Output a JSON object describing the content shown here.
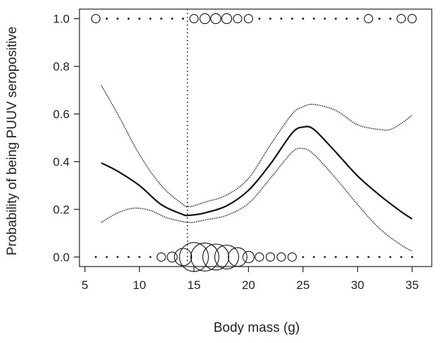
{
  "chart_data": {
    "type": "line",
    "title": "",
    "xlabel": "Body mass (g)",
    "ylabel": "Probability of being PUUV seropositive",
    "xlim": [
      4.5,
      36.8
    ],
    "ylim": [
      -0.04,
      1.04
    ],
    "xticks": [
      5,
      10,
      15,
      20,
      25,
      30,
      35
    ],
    "yticks": [
      0.0,
      0.2,
      0.4,
      0.6,
      0.8,
      1.0
    ],
    "xtick_labels": [
      "5",
      "10",
      "15",
      "20",
      "25",
      "30",
      "35"
    ],
    "ytick_labels": [
      "0.0",
      "0.2",
      "0.4",
      "0.6",
      "0.8",
      "1.0"
    ],
    "grid": false,
    "legend": "none",
    "reference_line_x": 14.4,
    "series": [
      {
        "role": "fit",
        "x": [
          6.5,
          8,
          10,
          12,
          14,
          14.5,
          15,
          16,
          18,
          20,
          22,
          24,
          25,
          26,
          28,
          30,
          32,
          34,
          35
        ],
        "y": [
          0.395,
          0.36,
          0.3,
          0.22,
          0.178,
          0.175,
          0.177,
          0.185,
          0.215,
          0.28,
          0.39,
          0.52,
          0.545,
          0.535,
          0.44,
          0.34,
          0.26,
          0.19,
          0.16
        ]
      },
      {
        "role": "upper-ci",
        "x": [
          6.5,
          8,
          10,
          12,
          14,
          14.5,
          15,
          16,
          18,
          20,
          22,
          24,
          25,
          26,
          28,
          30,
          32,
          33,
          34,
          35
        ],
        "y": [
          0.72,
          0.6,
          0.43,
          0.3,
          0.22,
          0.212,
          0.215,
          0.23,
          0.26,
          0.33,
          0.47,
          0.6,
          0.63,
          0.64,
          0.615,
          0.555,
          0.535,
          0.535,
          0.56,
          0.595
        ]
      },
      {
        "role": "lower-ci",
        "x": [
          6.5,
          8,
          9.5,
          11,
          12.5,
          14,
          14.5,
          15,
          16,
          18,
          20,
          22,
          24,
          25,
          26,
          28,
          30,
          32,
          34,
          35
        ],
        "y": [
          0.145,
          0.185,
          0.205,
          0.195,
          0.165,
          0.148,
          0.145,
          0.146,
          0.155,
          0.175,
          0.225,
          0.33,
          0.44,
          0.455,
          0.43,
          0.33,
          0.22,
          0.12,
          0.05,
          0.025
        ]
      }
    ],
    "observations": [
      {
        "y": 1,
        "x": [
          6,
          7,
          8,
          9,
          10,
          11,
          12,
          13,
          14,
          15,
          16,
          17,
          18,
          19,
          20,
          21,
          22,
          23,
          24,
          25,
          26,
          27,
          28,
          29,
          30,
          31,
          32,
          33,
          34,
          35
        ],
        "n": [
          2,
          1,
          1,
          1,
          1,
          1,
          1,
          1,
          1,
          2,
          3,
          3,
          3,
          2,
          2,
          1,
          1,
          1,
          1,
          1,
          1,
          1,
          1,
          1,
          1,
          2,
          1,
          1,
          2,
          2
        ]
      },
      {
        "y": 0,
        "x": [
          6,
          7,
          8,
          9,
          10,
          11,
          12,
          13,
          14,
          15,
          16,
          17,
          18,
          19,
          20,
          21,
          22,
          23,
          24,
          25,
          26,
          27,
          28,
          29,
          30,
          31,
          32,
          33,
          34,
          35
        ],
        "n": [
          1,
          1,
          1,
          1,
          1,
          1,
          2,
          3,
          10,
          30,
          28,
          24,
          20,
          12,
          4,
          2,
          2,
          2,
          2,
          1,
          1,
          1,
          1,
          1,
          1,
          1,
          1,
          1,
          1,
          1
        ]
      }
    ]
  }
}
